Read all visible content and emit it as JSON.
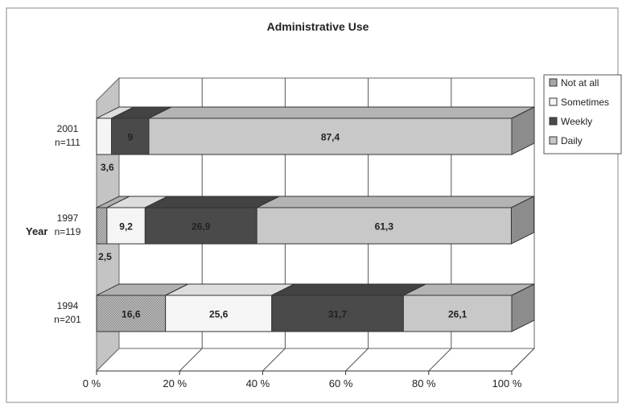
{
  "chart_data": {
    "type": "bar",
    "orientation": "horizontal",
    "stacked": "100%",
    "three_d": true,
    "title": "Administrative Use",
    "ylabel": "Year",
    "xlim": [
      0,
      100
    ],
    "x_ticks": [
      "0 %",
      "20 %",
      "40 %",
      "60 %",
      "80 %",
      "100 %"
    ],
    "categories": [
      {
        "year": "2001",
        "n": "n=111"
      },
      {
        "year": "1997",
        "n": "n=119"
      },
      {
        "year": "1994",
        "n": "n=201"
      }
    ],
    "series": [
      {
        "name": "Not at all",
        "color": "#9a9a9a",
        "values": [
          0,
          2.5,
          16.6
        ],
        "labels": [
          "",
          "2,5",
          "16,6"
        ]
      },
      {
        "name": "Sometimes",
        "color": "#f5f5f5",
        "values": [
          3.6,
          9.2,
          25.6
        ],
        "labels": [
          "3,6",
          "9,2",
          "25,6"
        ]
      },
      {
        "name": "Weekly",
        "color": "#4a4a4a",
        "values": [
          9,
          26.9,
          31.7
        ],
        "labels": [
          "9",
          "26,9",
          "31,7"
        ]
      },
      {
        "name": "Daily",
        "color": "#c8c8c8",
        "values": [
          87.4,
          61.3,
          26.1
        ],
        "labels": [
          "87,4",
          "61,3",
          "26,1"
        ]
      }
    ],
    "legend_position": "right",
    "grid": true
  }
}
